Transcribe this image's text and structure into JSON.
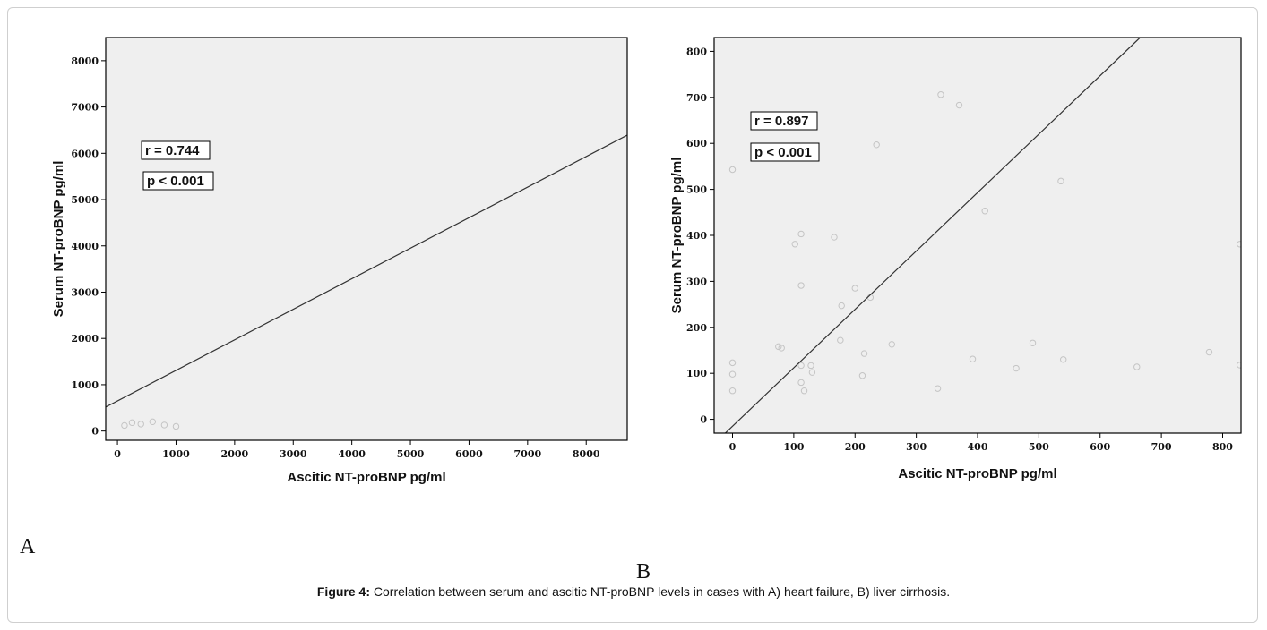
{
  "chart_data": [
    {
      "type": "scatter",
      "panel": "A",
      "xlabel": "Ascitic NT-proBNP pg/ml",
      "ylabel": "Serum NT-proBNP pg/ml",
      "xlim": [
        -200,
        8700
      ],
      "ylim": [
        -200,
        8500
      ],
      "xticks": [
        0,
        1000,
        2000,
        3000,
        4000,
        5000,
        6000,
        7000,
        8000
      ],
      "yticks": [
        0,
        1000,
        2000,
        3000,
        4000,
        5000,
        6000,
        7000,
        8000
      ],
      "points": [
        {
          "x": 120,
          "y": 120
        },
        {
          "x": 250,
          "y": 180
        },
        {
          "x": 400,
          "y": 150
        },
        {
          "x": 600,
          "y": 200
        },
        {
          "x": 800,
          "y": 130
        },
        {
          "x": 1000,
          "y": 100
        }
      ],
      "fit_line": {
        "intercept": 650,
        "slope": 0.66
      },
      "annotations": [
        "r = 0.744",
        "p < 0.001"
      ],
      "background": "#efefef",
      "grid": false
    },
    {
      "type": "scatter",
      "panel": "B",
      "xlabel": "Ascitic NT-proBNP pg/ml",
      "ylabel": "Serum NT-proBNP pg/ml",
      "xlim": [
        -30,
        830
      ],
      "ylim": [
        -30,
        830
      ],
      "xticks": [
        0,
        100,
        200,
        300,
        400,
        500,
        600,
        700,
        800
      ],
      "yticks": [
        0,
        100,
        200,
        300,
        400,
        500,
        600,
        700,
        800
      ],
      "points": [
        {
          "x": 0,
          "y": 543
        },
        {
          "x": 0,
          "y": 123
        },
        {
          "x": 0,
          "y": 98
        },
        {
          "x": 0,
          "y": 62
        },
        {
          "x": 75,
          "y": 158
        },
        {
          "x": 80,
          "y": 155
        },
        {
          "x": 102,
          "y": 381
        },
        {
          "x": 112,
          "y": 403
        },
        {
          "x": 112,
          "y": 291
        },
        {
          "x": 112,
          "y": 117
        },
        {
          "x": 112,
          "y": 80
        },
        {
          "x": 117,
          "y": 62
        },
        {
          "x": 128,
          "y": 117
        },
        {
          "x": 130,
          "y": 102
        },
        {
          "x": 166,
          "y": 396
        },
        {
          "x": 176,
          "y": 172
        },
        {
          "x": 178,
          "y": 247
        },
        {
          "x": 200,
          "y": 285
        },
        {
          "x": 212,
          "y": 95
        },
        {
          "x": 215,
          "y": 143
        },
        {
          "x": 225,
          "y": 265
        },
        {
          "x": 235,
          "y": 597
        },
        {
          "x": 260,
          "y": 163
        },
        {
          "x": 335,
          "y": 67
        },
        {
          "x": 340,
          "y": 706
        },
        {
          "x": 370,
          "y": 683
        },
        {
          "x": 392,
          "y": 131
        },
        {
          "x": 412,
          "y": 453
        },
        {
          "x": 463,
          "y": 111
        },
        {
          "x": 490,
          "y": 166
        },
        {
          "x": 536,
          "y": 518
        },
        {
          "x": 540,
          "y": 130
        },
        {
          "x": 660,
          "y": 114
        },
        {
          "x": 778,
          "y": 146
        },
        {
          "x": 828,
          "y": 381
        },
        {
          "x": 828,
          "y": 118
        }
      ],
      "fit_line": {
        "intercept": -15,
        "slope": 1.27
      },
      "annotations": [
        "r = 0.897",
        "p < 0.001"
      ],
      "background": "#efefef",
      "grid": false
    }
  ],
  "labels": {
    "panel_a": "A",
    "panel_b": "B"
  },
  "caption": {
    "prefix": "Figure 4:",
    "text": " Correlation between serum and ascitic NT-proBNP levels in cases with A) heart failure, B) liver cirrhosis."
  }
}
